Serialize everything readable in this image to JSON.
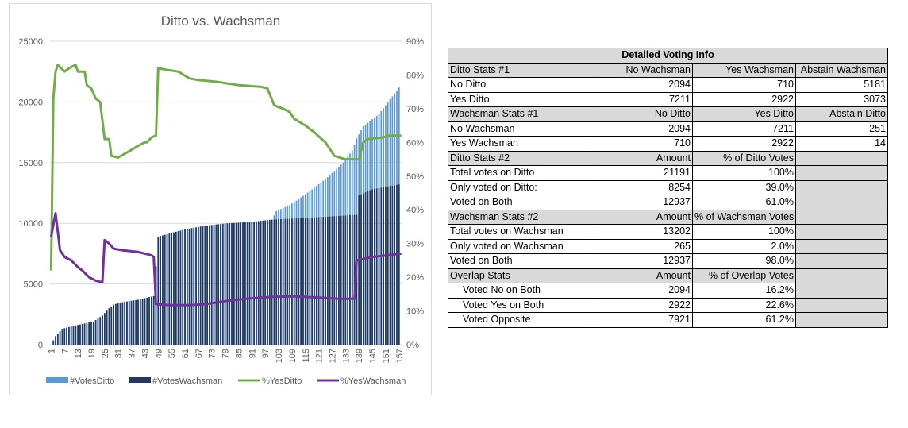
{
  "chart_data": {
    "type": "bar+line",
    "title": "Ditto vs. Wachsman",
    "y_left_ticks": [
      "0",
      "5000",
      "10000",
      "15000",
      "20000",
      "25000"
    ],
    "y_left_range": [
      0,
      25000
    ],
    "y_right_ticks": [
      "0%",
      "10%",
      "20%",
      "30%",
      "40%",
      "50%",
      "60%",
      "70%",
      "80%",
      "90%"
    ],
    "y_right_range": [
      0,
      90
    ],
    "x_range": [
      1,
      158
    ],
    "x_tick_labels": [
      "1",
      "7",
      "13",
      "19",
      "25",
      "31",
      "37",
      "43",
      "49",
      "55",
      "61",
      "67",
      "73",
      "79",
      "85",
      "91",
      "97",
      "103",
      "109",
      "115",
      "121",
      "127",
      "133",
      "139",
      "145",
      "151",
      "157"
    ],
    "grid": "horizontal",
    "legend_position": "bottom",
    "colors": {
      "votes_ditto": "#5b9bd5",
      "votes_wachsman": "#1f3864",
      "yes_ditto": "#70ad47",
      "yes_wachsman": "#7030a0"
    },
    "series": [
      {
        "name": "#VotesDitto",
        "kind": "bar",
        "axis": "left",
        "keypoints": [
          [
            1,
            0
          ],
          [
            3,
            700
          ],
          [
            6,
            1300
          ],
          [
            10,
            1500
          ],
          [
            15,
            1700
          ],
          [
            20,
            1900
          ],
          [
            24,
            2400
          ],
          [
            27,
            3000
          ],
          [
            29,
            3300
          ],
          [
            33,
            3500
          ],
          [
            40,
            3700
          ],
          [
            47,
            4000
          ],
          [
            49,
            8900
          ],
          [
            55,
            9200
          ],
          [
            61,
            9500
          ],
          [
            70,
            9800
          ],
          [
            80,
            10000
          ],
          [
            90,
            10100
          ],
          [
            100,
            10300
          ],
          [
            102,
            11000
          ],
          [
            108,
            11500
          ],
          [
            112,
            12000
          ],
          [
            118,
            12800
          ],
          [
            125,
            13800
          ],
          [
            132,
            15000
          ],
          [
            136,
            16000
          ],
          [
            138,
            17000
          ],
          [
            141,
            18000
          ],
          [
            148,
            19000
          ],
          [
            157,
            21191
          ]
        ]
      },
      {
        "name": "#VotesWachsman",
        "kind": "bar",
        "axis": "left",
        "keypoints": [
          [
            1,
            0
          ],
          [
            3,
            700
          ],
          [
            6,
            1300
          ],
          [
            10,
            1500
          ],
          [
            15,
            1700
          ],
          [
            20,
            1900
          ],
          [
            24,
            2400
          ],
          [
            27,
            3000
          ],
          [
            29,
            3300
          ],
          [
            33,
            3500
          ],
          [
            40,
            3700
          ],
          [
            47,
            4000
          ],
          [
            49,
            8900
          ],
          [
            55,
            9200
          ],
          [
            61,
            9500
          ],
          [
            70,
            9800
          ],
          [
            80,
            10000
          ],
          [
            90,
            10100
          ],
          [
            100,
            10300
          ],
          [
            110,
            10400
          ],
          [
            120,
            10500
          ],
          [
            130,
            10600
          ],
          [
            138,
            10700
          ],
          [
            139,
            12300
          ],
          [
            145,
            12800
          ],
          [
            157,
            13202
          ]
        ]
      },
      {
        "name": "%YesDitto",
        "kind": "line",
        "axis": "right",
        "keypoints": [
          [
            1,
            22
          ],
          [
            2,
            73
          ],
          [
            3,
            81
          ],
          [
            4,
            83
          ],
          [
            7,
            81
          ],
          [
            9,
            82
          ],
          [
            12,
            83
          ],
          [
            13,
            81
          ],
          [
            16,
            81
          ],
          [
            17,
            77
          ],
          [
            19,
            76
          ],
          [
            21,
            73
          ],
          [
            23,
            72
          ],
          [
            25,
            61
          ],
          [
            27,
            61
          ],
          [
            28,
            56
          ],
          [
            31,
            55.5
          ],
          [
            35,
            57
          ],
          [
            40,
            59
          ],
          [
            43,
            60
          ],
          [
            44,
            60
          ],
          [
            46,
            61.5
          ],
          [
            48,
            62
          ],
          [
            49,
            82
          ],
          [
            53,
            81.5
          ],
          [
            58,
            81
          ],
          [
            63,
            79
          ],
          [
            67,
            78.5
          ],
          [
            75,
            78
          ],
          [
            80,
            77.5
          ],
          [
            85,
            77
          ],
          [
            95,
            76.5
          ],
          [
            98,
            76
          ],
          [
            101,
            71
          ],
          [
            105,
            70
          ],
          [
            108,
            69
          ],
          [
            110,
            67
          ],
          [
            115,
            65
          ],
          [
            119,
            63
          ],
          [
            124,
            60
          ],
          [
            128,
            56
          ],
          [
            133,
            55
          ],
          [
            139,
            55
          ],
          [
            141,
            60
          ],
          [
            143,
            61
          ],
          [
            150,
            61.5
          ],
          [
            152,
            62
          ],
          [
            158,
            62
          ]
        ]
      },
      {
        "name": "%YesWachsman",
        "kind": "line",
        "axis": "right",
        "keypoints": [
          [
            1,
            32
          ],
          [
            3,
            39
          ],
          [
            5,
            28
          ],
          [
            7,
            26
          ],
          [
            10,
            25
          ],
          [
            13,
            23
          ],
          [
            15,
            22
          ],
          [
            18,
            20
          ],
          [
            21,
            19
          ],
          [
            24,
            18.5
          ],
          [
            25,
            31
          ],
          [
            27,
            30
          ],
          [
            29,
            28.5
          ],
          [
            33,
            28
          ],
          [
            40,
            27.5
          ],
          [
            46,
            26.5
          ],
          [
            47,
            26
          ],
          [
            48,
            12
          ],
          [
            55,
            11.7
          ],
          [
            62,
            11.7
          ],
          [
            70,
            12
          ],
          [
            80,
            13
          ],
          [
            90,
            13.7
          ],
          [
            100,
            14.2
          ],
          [
            110,
            14.3
          ],
          [
            120,
            14
          ],
          [
            130,
            13.6
          ],
          [
            137,
            13.6
          ],
          [
            138,
            25
          ],
          [
            145,
            26
          ],
          [
            158,
            27
          ]
        ]
      }
    ]
  },
  "table": {
    "title": "Detailed Voting Info",
    "sections": [
      {
        "header": [
          "Ditto Stats #1",
          "No Wachsman",
          "Yes Wachsman",
          "Abstain Wachsman"
        ],
        "rows": [
          [
            "No Ditto",
            "2094",
            "710",
            "5181"
          ],
          [
            "Yes Ditto",
            "7211",
            "2922",
            "3073"
          ]
        ]
      },
      {
        "header": [
          "Wachsman Stats #1",
          "No Ditto",
          "Yes Ditto",
          "Abstain Ditto"
        ],
        "rows": [
          [
            "No Wachsman",
            "2094",
            "7211",
            "251"
          ],
          [
            "Yes Wachsman",
            "710",
            "2922",
            "14"
          ]
        ]
      },
      {
        "header": [
          "Ditto Stats #2",
          "Amount",
          "% of Ditto Votes",
          ""
        ],
        "rows": [
          [
            "Total votes on Ditto",
            "21191",
            "100%",
            ""
          ],
          [
            "Only voted on Ditto:",
            "8254",
            "39.0%",
            ""
          ],
          [
            "Voted on Both",
            "12937",
            "61.0%",
            ""
          ]
        ]
      },
      {
        "header": [
          "Wachsman Stats #2",
          "Amount",
          "% of Wachsman Votes",
          ""
        ],
        "rows": [
          [
            "Total votes on Wachsman",
            "13202",
            "100%",
            ""
          ],
          [
            "Only voted on Wachsman",
            "265",
            "2.0%",
            ""
          ],
          [
            "Voted on Both",
            "12937",
            "98.0%",
            ""
          ]
        ]
      },
      {
        "header": [
          "Overlap Stats",
          "Amount",
          "% of Overlap Votes",
          ""
        ],
        "rows": [
          [
            "Voted No on Both",
            "2094",
            "16.2%",
            ""
          ],
          [
            "Voted Yes on Both",
            "2922",
            "22.6%",
            ""
          ],
          [
            "Voted Opposite",
            "7921",
            "61.2%",
            ""
          ]
        ]
      }
    ]
  }
}
